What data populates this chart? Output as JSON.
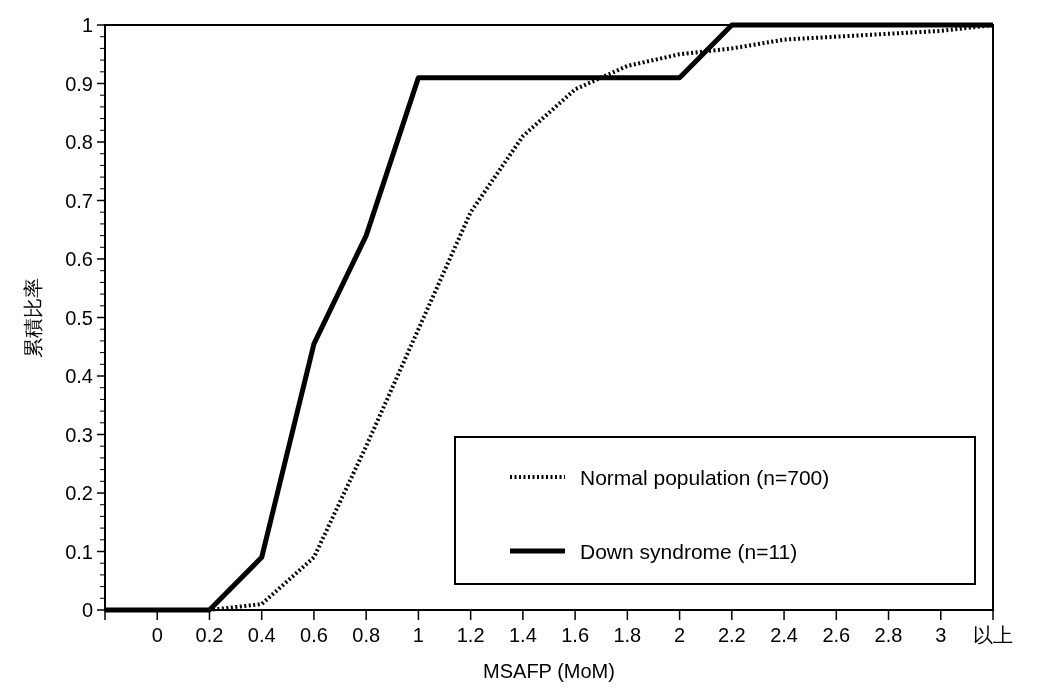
{
  "chart_data": {
    "type": "line",
    "xlabel": "MSAFP (MoM)",
    "ylabel": "累積比率",
    "categories": [
      null,
      "0",
      "0.2",
      "0.4",
      "0.6",
      "0.8",
      "1",
      "1.2",
      "1.4",
      "1.6",
      "1.8",
      "2",
      "2.2",
      "2.4",
      "2.6",
      "2.8",
      "3",
      "以上"
    ],
    "ylim": [
      0,
      1
    ],
    "yticks": [
      0,
      0.1,
      0.2,
      0.3,
      0.4,
      0.5,
      0.6,
      0.7,
      0.8,
      0.9,
      1
    ],
    "legend": "bottom right",
    "series": [
      {
        "name": "Normal population (n=700)",
        "color": "#000000",
        "line_style": "dotted",
        "values": [
          0,
          0,
          0,
          0.01,
          0.09,
          0.28,
          0.48,
          0.68,
          0.81,
          0.89,
          0.93,
          0.95,
          0.96,
          0.975,
          0.98,
          0.985,
          0.99,
          1
        ]
      },
      {
        "name": "Down syndrome (n=11)",
        "color": "#000000",
        "line_style": "solid",
        "values": [
          0,
          0,
          0,
          0.09,
          0.455,
          0.64,
          0.91,
          0.91,
          0.91,
          0.91,
          0.91,
          0.91,
          1,
          1,
          1,
          1,
          1,
          1
        ]
      }
    ]
  }
}
